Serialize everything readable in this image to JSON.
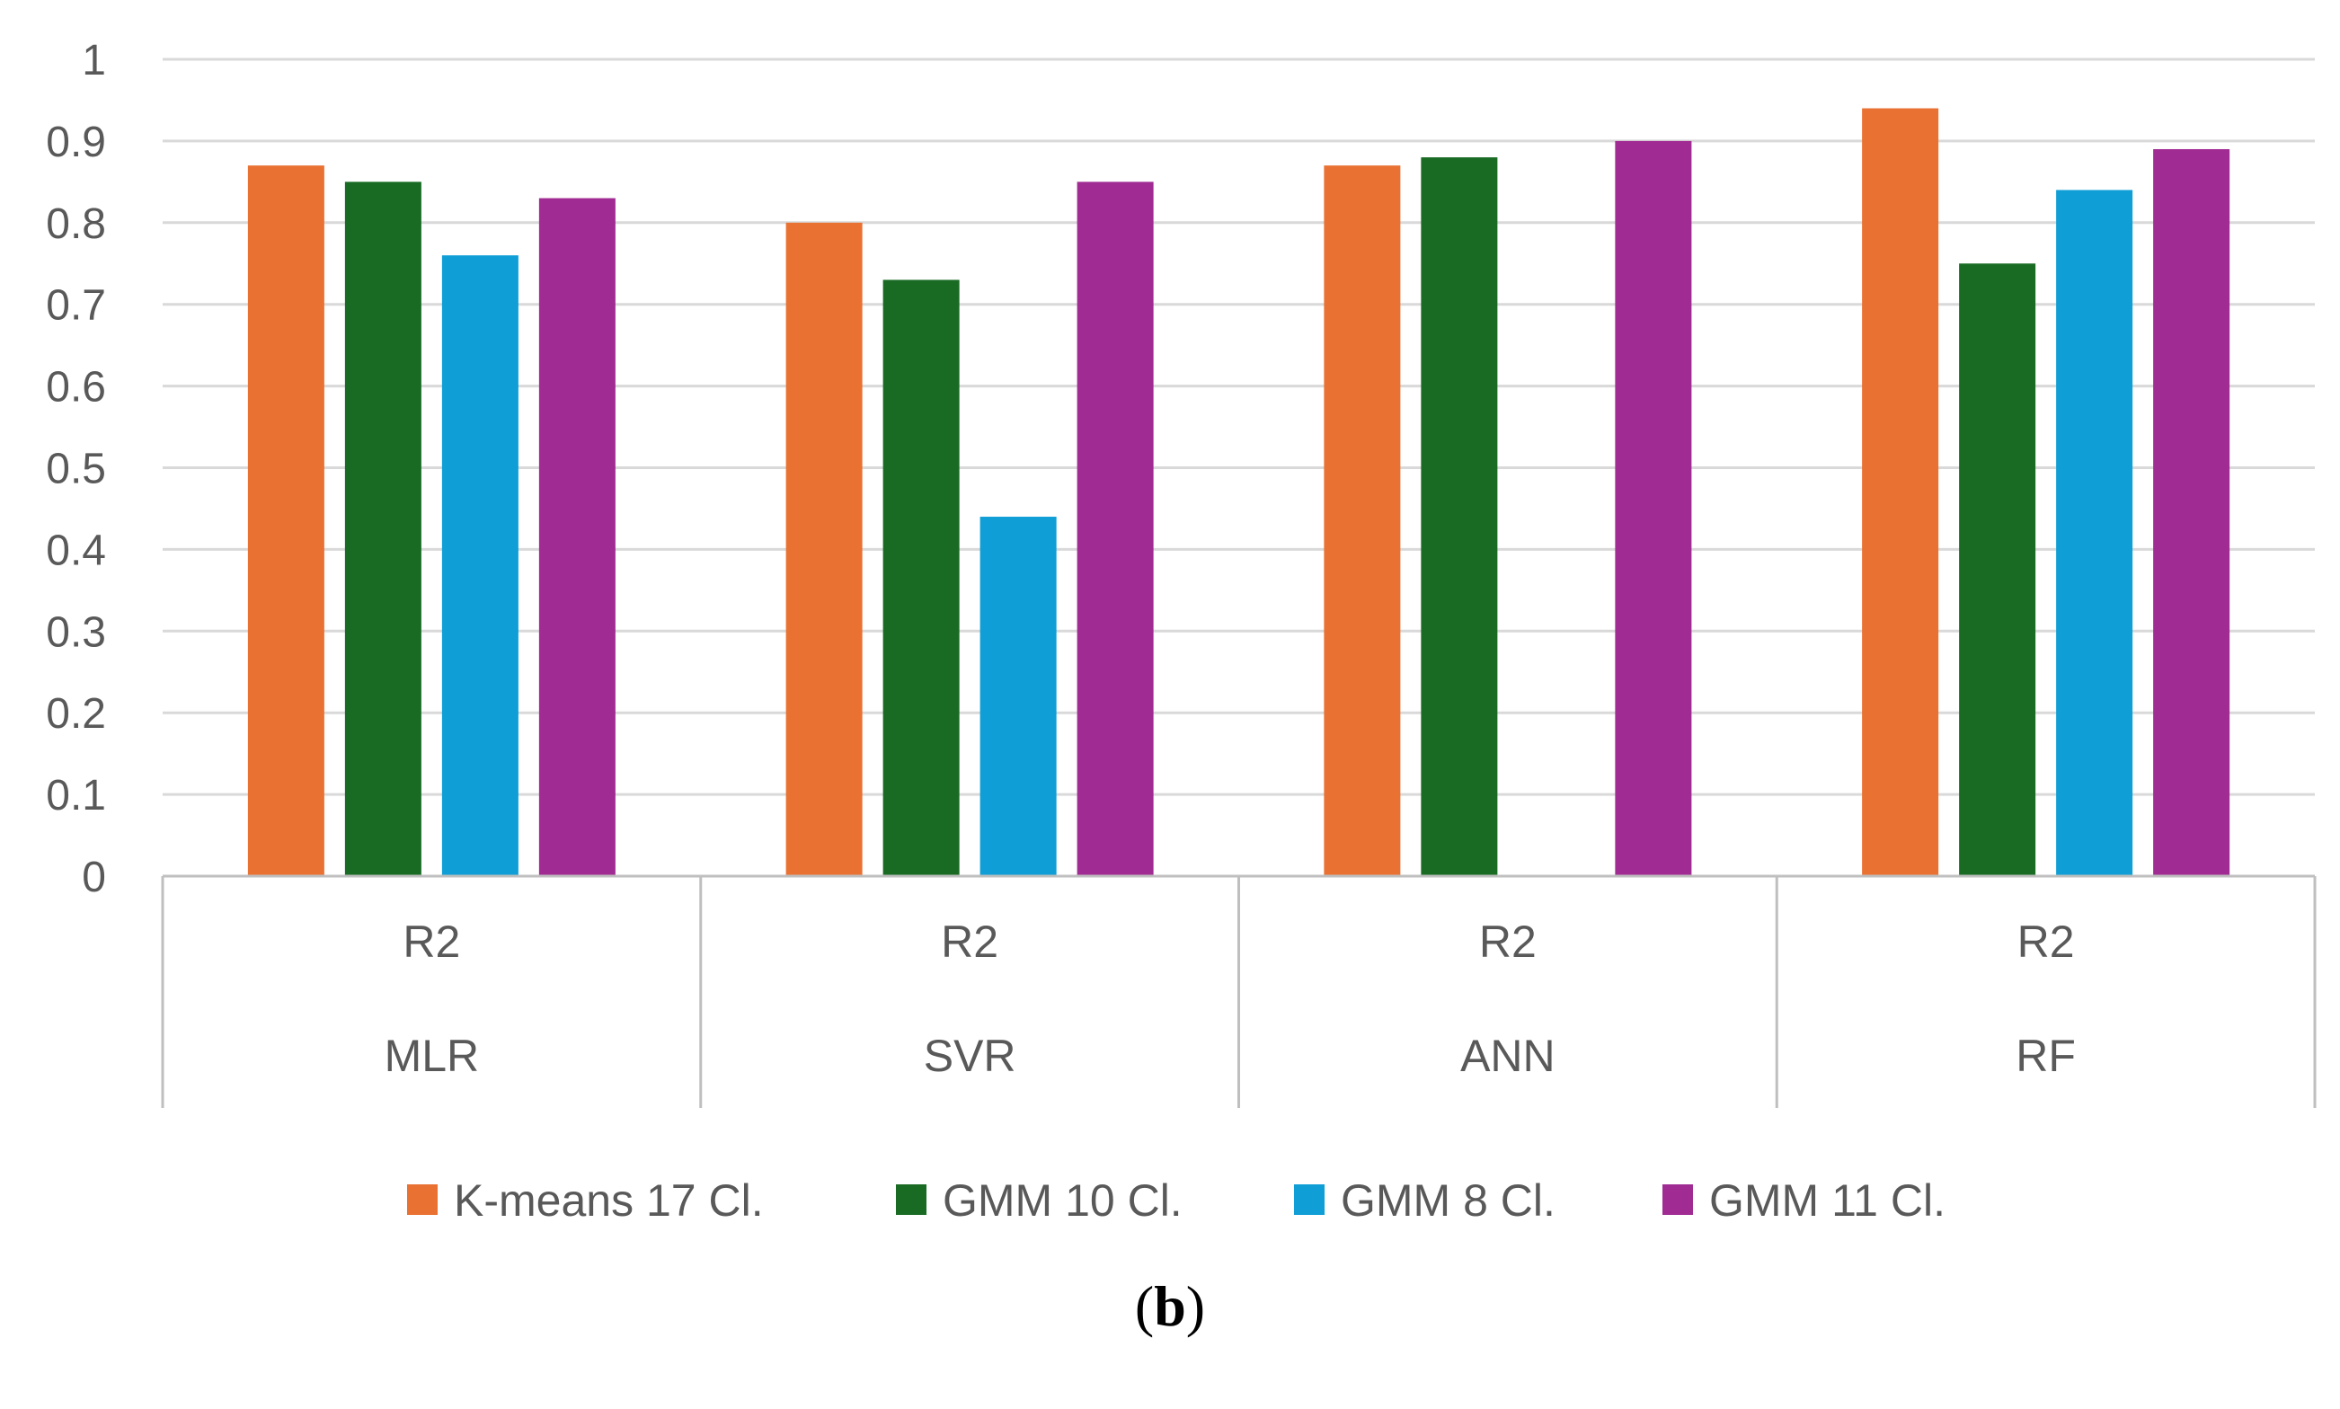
{
  "chart_data": {
    "type": "bar",
    "title": "",
    "xlabel": "",
    "ylabel": "",
    "ylim": [
      0,
      1
    ],
    "yticks": [
      "0",
      "0.1",
      "0.2",
      "0.3",
      "0.4",
      "0.5",
      "0.6",
      "0.7",
      "0.8",
      "0.9",
      "1"
    ],
    "grid": true,
    "legend_position": "bottom",
    "categories": [
      {
        "metric": "R2",
        "model": "MLR"
      },
      {
        "metric": "R2",
        "model": "SVR"
      },
      {
        "metric": "R2",
        "model": "ANN"
      },
      {
        "metric": "R2",
        "model": "RF"
      }
    ],
    "series": [
      {
        "name": "K-means 17 Cl.",
        "color": "#E97132",
        "values": [
          0.87,
          0.8,
          0.87,
          0.94
        ]
      },
      {
        "name": "GMM 10 Cl.",
        "color": "#196B24",
        "values": [
          0.85,
          0.73,
          0.88,
          0.75
        ]
      },
      {
        "name": "GMM 8 Cl.",
        "color": "#0F9ED5",
        "values": [
          0.76,
          0.44,
          0.0,
          0.84
        ]
      },
      {
        "name": "GMM 11 Cl.",
        "color": "#A02B93",
        "values": [
          0.83,
          0.85,
          0.9,
          0.89
        ]
      }
    ],
    "caption": {
      "open": "(",
      "letter": "b",
      "close": ")"
    }
  }
}
